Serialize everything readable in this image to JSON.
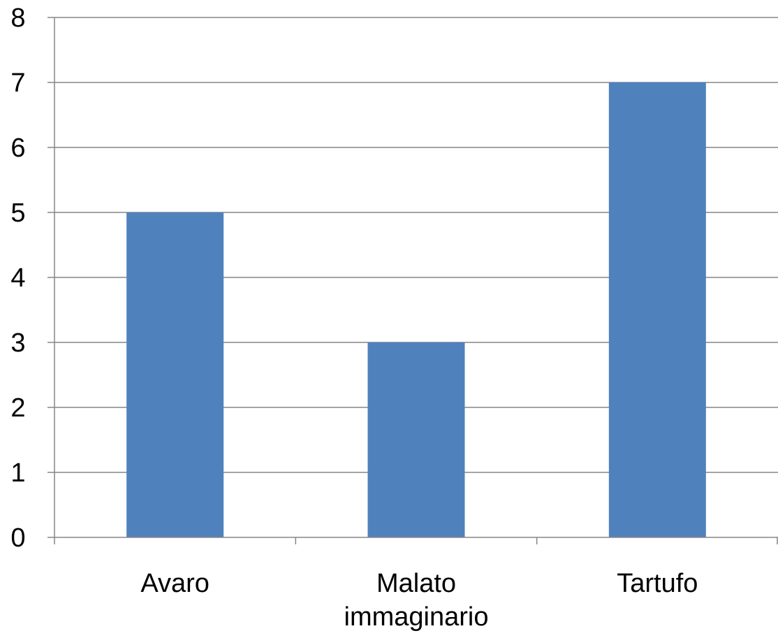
{
  "chart_data": {
    "type": "bar",
    "categories": [
      "Avaro",
      "Malato immaginario",
      "Tartufo"
    ],
    "category_label_lines": [
      [
        "Avaro"
      ],
      [
        "Malato",
        "immaginario"
      ],
      [
        "Tartufo"
      ]
    ],
    "values": [
      5,
      3,
      7
    ],
    "ylim": [
      0,
      8
    ],
    "yticks": [
      "0",
      "1",
      "2",
      "3",
      "4",
      "5",
      "6",
      "7",
      "8"
    ],
    "grid": true,
    "legend": "none",
    "bar_color": "#4F81BD",
    "grid_color": "#868686"
  }
}
